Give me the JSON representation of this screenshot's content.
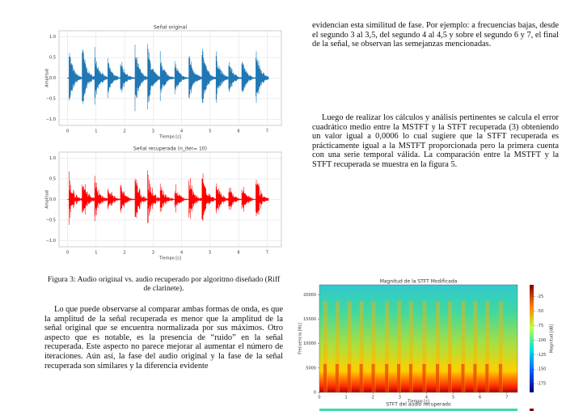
{
  "figure3": {
    "plots": [
      {
        "title": "Señal original",
        "ylabel": "Amplitud",
        "xlabel": "Tiempo [s]",
        "xlim": [
          -0.3,
          7.5
        ],
        "ylim": [
          -1.15,
          1.15
        ],
        "xticks": [
          0,
          1,
          2,
          3,
          4,
          5,
          6,
          7
        ],
        "yticks": [
          {
            "value": 1,
            "label": "1.0"
          },
          {
            "value": 0.5,
            "label": "0.5"
          },
          {
            "value": 0,
            "label": "0.0"
          },
          {
            "value": -0.5,
            "label": "−0.5"
          },
          {
            "value": -1,
            "label": "−1.0"
          }
        ]
      },
      {
        "title": "Señal recuperada (n_iter= 10)",
        "ylabel": "Amplitud",
        "xlabel": "Tiempo [s]",
        "xlim": [
          -0.3,
          7.5
        ],
        "ylim": [
          -1.15,
          1.15
        ],
        "xticks": [
          0,
          1,
          2,
          3,
          4,
          5,
          6,
          7
        ],
        "yticks": [
          {
            "value": 1,
            "label": "1.0"
          },
          {
            "value": 0.5,
            "label": "0.5"
          },
          {
            "value": 0,
            "label": "0.0"
          },
          {
            "value": -0.5,
            "label": "−0.5"
          },
          {
            "value": -1,
            "label": "−1.0"
          }
        ]
      }
    ],
    "caption": "Figura 3: Audio original vs. audio recuperado por algoritmo diseñado (Riff de clarinete)."
  },
  "left_paragraph": "Lo que puede observarse al comparar ambas formas de onda, es que la amplitud de la señal recuperada es menor que la amplitud de la señal original que se encuentra normalizada por sus máximos. Otro aspecto que es notable, es la presencia de “ruido” en la señal recuperada. Este aspecto no parece mejorar al aumentar el número de iteraciones. Aún así, la fase del audio original y la fase de la señal recuperada son similares y la diferencia evidente",
  "right_paragraphs": [
    "evidencian esta similitud de fase. Por ejemplo: a frecuencias bajas, desde el segundo 3 al 3,5, del segundo 4 al 4,5 y sobre el segundo 6 y 7, el final de la señal, se observan las semejanzas mencionadas.",
    "Luego de realizar los cálculos y análisis pertinentes se calcula el error cuadrático medio entre la MSTFT y la STFT recuperada (3) obteniendo un valor igual a 0,0006 lo cual sugiere que la STFT recuperada es prácticamente igual a la MSTFT proporcionada pero la primera cuenta con una serie temporal válida. La comparación entre la MSTFT y la STFT recuperada se muestra en la figura 5."
  ],
  "figure5": {
    "plots": [
      {
        "title": "Magnitud de la STFT Modificada",
        "xlabel": "Tiempo [s]",
        "ylabel": "Frecuencia [Hz]",
        "xlim": [
          0,
          7.4
        ],
        "ylim": [
          0,
          22050
        ],
        "xticks": [
          0,
          1,
          2,
          3,
          4,
          5,
          6,
          7
        ],
        "yticks": [
          0,
          5000,
          10000,
          15000,
          20000
        ],
        "colorbar": {
          "label": "Magnitud [dB]",
          "lim": [
            -190,
            -5
          ],
          "ticks": [
            -25,
            -50,
            -75,
            -100,
            -125,
            -150,
            -175
          ]
        }
      },
      {
        "title": "STFT del audio recuperado"
      }
    ]
  }
}
